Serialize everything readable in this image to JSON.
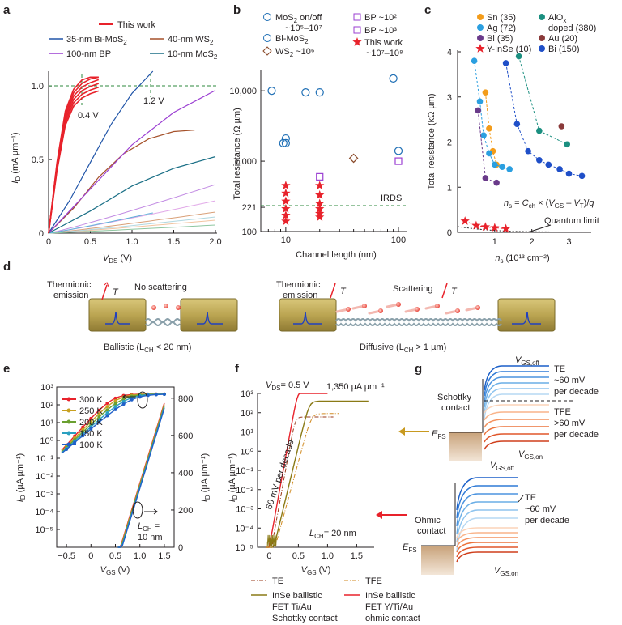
{
  "colors": {
    "red": "#e8222b",
    "blue": "#1f6fb5",
    "brown": "#a5512a",
    "purple": "#9b3fd2",
    "darkteal": "#1a6f86",
    "green": "#2d8a3c",
    "olive": "#8a7a16",
    "orange": "#f39c1a",
    "teal": "#1b8f80",
    "grey": "#2a2a2a"
  },
  "panels": {
    "a": "a",
    "b": "b",
    "c": "c",
    "d": "d",
    "e": "e",
    "f": "f",
    "g": "g"
  },
  "chart_data": [
    {
      "id": "a",
      "type": "line",
      "xlabel_main": "V",
      "xlabel_sub": "DS",
      "xlabel_unit": " (V)",
      "ylabel_main": "I",
      "ylabel_sub": "D",
      "ylabel_unit": " (mA µm⁻¹)",
      "xlim": [
        0,
        2.0
      ],
      "ylim": [
        0,
        1.1
      ],
      "xticks": [
        "0",
        "0.5",
        "1.0",
        "1.5",
        "2.0"
      ],
      "yticks": [
        "0",
        "0.5",
        "1.0"
      ],
      "annotations": [
        "0.4 V",
        "1.2 V"
      ],
      "legend": [
        "This work",
        "35-nm Bi-MoS₂",
        "40-nm WS₂",
        "100-nm BP",
        "10-nm MoS₂"
      ],
      "series": [
        {
          "name": "This work",
          "color": "#e8222b",
          "x": [
            0,
            0.1,
            0.2,
            0.3,
            0.4,
            0.5,
            0.6
          ],
          "y": [
            0,
            0.45,
            0.78,
            0.92,
            0.98,
            1.01,
            1.03
          ]
        },
        {
          "name": "35-nm Bi-MoS₂",
          "color": "#2155a8",
          "x": [
            0,
            0.25,
            0.5,
            0.75,
            1.0,
            1.25
          ],
          "y": [
            0,
            0.22,
            0.48,
            0.74,
            0.95,
            1.1
          ]
        },
        {
          "name": "40-nm WS₂",
          "color": "#a5512a",
          "x": [
            0,
            0.3,
            0.6,
            0.9,
            1.2,
            1.5,
            1.75
          ],
          "y": [
            0,
            0.17,
            0.38,
            0.54,
            0.64,
            0.69,
            0.7
          ]
        },
        {
          "name": "100-nm BP",
          "color": "#9b3fd2",
          "x": [
            0,
            0.5,
            1.0,
            1.5,
            2.0
          ],
          "y": [
            0,
            0.3,
            0.6,
            0.82,
            0.97
          ]
        },
        {
          "name": "10-nm MoS₂",
          "color": "#1a6f86",
          "x": [
            0,
            0.5,
            1.0,
            1.5,
            2.0
          ],
          "y": [
            0,
            0.15,
            0.32,
            0.44,
            0.52
          ]
        }
      ]
    },
    {
      "id": "b",
      "type": "scatter",
      "xlabel": "Channel length (nm)",
      "ylabel": "Total resistance (Ω µm)",
      "xscale": "log",
      "yscale": "log",
      "xlim": [
        6,
        120
      ],
      "ylim": [
        100,
        20000
      ],
      "xticks": [
        "10",
        "100"
      ],
      "yticks": [
        "100",
        "221",
        "1,000",
        "10,000"
      ],
      "irds_value": 221,
      "irds_label": "IRDS",
      "legend": [
        "MoS₂ on/off ~10⁵–10⁷",
        "Bi-MoS₂",
        "WS₂ ~10⁶",
        "BP ~10²",
        "BP ~10³",
        "This work ~10⁷–10⁸"
      ],
      "series": [
        {
          "name": "MoS₂ on/off ~10⁵–10⁷",
          "marker": "circle-open",
          "color": "#1f6fb5",
          "x": [
            7.5,
            10,
            15,
            20,
            90,
            100
          ],
          "y": [
            10000,
            1800,
            9500,
            9500,
            15000,
            1400
          ]
        },
        {
          "name": "Bi-MoS₂",
          "marker": "circle-open",
          "color": "#1f6fb5",
          "x": [
            9.5,
            10
          ],
          "y": [
            1800,
            2100
          ]
        },
        {
          "name": "WS₂ ~10⁶",
          "marker": "diamond-open",
          "color": "#8a4a2a",
          "x": [
            40
          ],
          "y": [
            1100
          ]
        },
        {
          "name": "BP ~10²",
          "marker": "square-open",
          "color": "#9b3fd2",
          "x": [
            20
          ],
          "y": [
            600
          ]
        },
        {
          "name": "BP ~10³",
          "marker": "square-open",
          "color": "#9b3fd2",
          "x": [
            100
          ],
          "y": [
            1000
          ]
        },
        {
          "name": "This work ~10⁷–10⁸",
          "marker": "star",
          "color": "#e8222b",
          "x": [
            10,
            10,
            10,
            10,
            10,
            10,
            20,
            20,
            20,
            20,
            20,
            20
          ],
          "y": [
            450,
            350,
            270,
            210,
            170,
            140,
            450,
            330,
            250,
            210,
            180,
            160
          ]
        }
      ]
    },
    {
      "id": "c",
      "type": "line",
      "xlabel": "n",
      "xlabel_sub": "s",
      "xlabel_unit": " (10¹³ cm⁻²)",
      "ylabel": "Total resistance (kΩ µm)",
      "xlim": [
        0,
        3.6
      ],
      "ylim": [
        0,
        4
      ],
      "xticks": [
        "1",
        "2",
        "3"
      ],
      "yticks": [
        "0",
        "1",
        "2",
        "3",
        "4"
      ],
      "formula": "n_s = C_ch × (V_GS − V_T)/q",
      "annotation": "Quantum limit",
      "legend": [
        "Sn (35)",
        "Ag (72)",
        "Bi (35)",
        "Y-InSe (10)",
        "AlOx doped (380)",
        "Au (20)",
        "Bi (150)"
      ],
      "series": [
        {
          "name": "Sn (35)",
          "color": "#f39c1a",
          "x": [
            0.75,
            0.85,
            0.95,
            1.05
          ],
          "y": [
            3.1,
            2.3,
            1.8,
            1.5
          ]
        },
        {
          "name": "Ag (72)",
          "color": "#2b9fe0",
          "x": [
            0.45,
            0.6,
            0.7,
            0.85,
            1.0,
            1.2,
            1.4
          ],
          "y": [
            3.8,
            2.9,
            2.15,
            1.75,
            1.5,
            1.45,
            1.4
          ]
        },
        {
          "name": "Bi (35)",
          "color": "#6a3a8a",
          "x": [
            0.55,
            0.75,
            1.05
          ],
          "y": [
            2.7,
            1.2,
            1.1
          ]
        },
        {
          "name": "Y-InSe (10)",
          "color": "#e8222b",
          "x": [
            0.2,
            0.5,
            0.75,
            1.0,
            1.3
          ],
          "y": [
            0.25,
            0.15,
            0.12,
            0.1,
            0.08
          ]
        },
        {
          "name": "AlOx doped (380)",
          "color": "#1b8f80",
          "x": [
            1.65,
            2.2,
            2.95
          ],
          "y": [
            3.9,
            2.25,
            1.95
          ]
        },
        {
          "name": "Au (20)",
          "color": "#8a3a3a",
          "x": [
            2.8
          ],
          "y": [
            2.35
          ]
        },
        {
          "name": "Bi (150)",
          "color": "#1f4fc8",
          "x": [
            1.3,
            1.6,
            1.9,
            2.2,
            2.45,
            2.75,
            3.0,
            3.35
          ],
          "y": [
            3.75,
            2.4,
            1.8,
            1.6,
            1.5,
            1.4,
            1.3,
            1.25
          ]
        }
      ]
    },
    {
      "id": "e",
      "type": "line",
      "xlabel": "V",
      "xlabel_sub": "GS",
      "xlabel_unit": " (V)",
      "ylabel_left": "I_D (µA µm⁻¹)",
      "ylabel_right": "I_D (µA µm⁻¹)",
      "xlim": [
        -0.7,
        1.7
      ],
      "ylim_log": [
        1e-06,
        1000.0
      ],
      "ylim_lin": [
        0,
        860
      ],
      "xticks": [
        "−0.5",
        "0",
        "0.5",
        "1.0",
        "1.5"
      ],
      "yticks_log": [
        "10⁻⁵",
        "10⁻⁴",
        "10⁻³",
        "10⁻²",
        "10⁻¹",
        "10⁰",
        "10¹",
        "10²",
        "10³"
      ],
      "yticks_lin": [
        "0",
        "200",
        "400",
        "600",
        "800"
      ],
      "annotation": "L_CH = 10 nm",
      "legend": [
        "300 K",
        "250 K",
        "200 K",
        "150 K",
        "100 K"
      ],
      "series": [
        {
          "name": "300 K",
          "color": "#e8222b",
          "vt": -0.1
        },
        {
          "name": "250 K",
          "color": "#c8a020",
          "vt": 0.0
        },
        {
          "name": "200 K",
          "color": "#6aa030",
          "vt": 0.1
        },
        {
          "name": "150 K",
          "color": "#2aa0c0",
          "vt": 0.2
        },
        {
          "name": "100 K",
          "color": "#2060c8",
          "vt": 0.3
        }
      ]
    },
    {
      "id": "f",
      "type": "line",
      "xlabel": "V",
      "xlabel_sub": "GS",
      "xlabel_unit": " (V)",
      "ylabel": "I_D (µA µm⁻¹)",
      "xlim": [
        -0.2,
        1.8
      ],
      "ylim_log": [
        1e-05,
        1000.0
      ],
      "xticks": [
        "0",
        "0.5",
        "1.0",
        "1.5"
      ],
      "yticks": [
        "10⁻⁵",
        "10⁻⁴",
        "10⁻³",
        "10⁻²",
        "10⁻¹",
        "10⁰",
        "10¹",
        "10²",
        "10³"
      ],
      "vds": "V_DS = 0.5 V",
      "peak": "1,350 µA µm⁻¹",
      "slope": "60 mV per decade",
      "lch": "L_CH = 20 nm",
      "legend": [
        "TE",
        "TFE",
        "InSe ballistic FET Ti/Au Schottky contact",
        "InSe ballistic FET Y/Ti/Au ohmic contact"
      ]
    }
  ],
  "text": {
    "a_leg": [
      "This work",
      "35-nm Bi-MoS",
      "40-nm WS",
      "100-nm BP",
      "10-nm MoS"
    ],
    "a_ann1": "0.4 V",
    "a_ann2": "1.2 V",
    "b_leg1": "MoS",
    "b_leg1b": " on/off",
    "b_leg1c": "~10⁵–10⁷",
    "b_leg2": "Bi-MoS",
    "b_leg3": "WS",
    "b_leg3b": " ~10⁶",
    "b_leg4": "BP ~10²",
    "b_leg5": "BP ~10³",
    "b_leg6": "This work",
    "b_leg6b": "~10⁷–10⁸",
    "b_irds": "IRDS",
    "c_formula": "= C",
    "c_quantum": "Quantum limit",
    "c_leg": [
      "Sn (35)",
      "Ag (72)",
      "Bi (35)",
      "Y-InSe (10)",
      "AlO",
      "doped (380)",
      "Au (20)",
      "Bi (150)"
    ],
    "d_thermionic1": "Thermionic",
    "d_thermionic2": "emission",
    "d_t": "T",
    "d_noscat": "No scattering",
    "d_ballistic": "Ballistic (L",
    "d_ballistic_b": " < 20 nm)",
    "d_diffusive": "Diffusive (L",
    "d_diffusive_b": " > 1 µm)",
    "d_scat": "Scattering",
    "e_lch": "L",
    "e_lch2": "= 10 nm",
    "f_vds": "= 0.5 V",
    "f_peak": "1,350 µA µm⁻¹",
    "f_slope": "60 mV per decade",
    "f_lch": "= 20 nm",
    "f_leg_te": "TE",
    "f_leg_tfe": "TFE",
    "f_leg_s1": "InSe ballistic",
    "f_leg_s2": "FET Ti/Au",
    "f_leg_s3": "Schottky contact",
    "f_leg_o1": "InSe ballistic",
    "f_leg_o2": "FET Y/Ti/Au",
    "f_leg_o3": "ohmic contact",
    "g_schottky1": "Schottky",
    "g_schottky2": "contact",
    "g_ohmic1": "Ohmic",
    "g_ohmic2": "contact",
    "g_te1": "TE",
    "g_te2": "~60 mV",
    "g_te3": "per decade",
    "g_tfe1": "TFE",
    "g_tfe2": ">60 mV",
    "g_tfe3": "per decade",
    "g_te4": "TE",
    "g_te5": "~60 mV",
    "g_te6": "per decade",
    "g_efs": "E",
    "g_vgsoff": "V",
    "g_vgson": "V"
  }
}
